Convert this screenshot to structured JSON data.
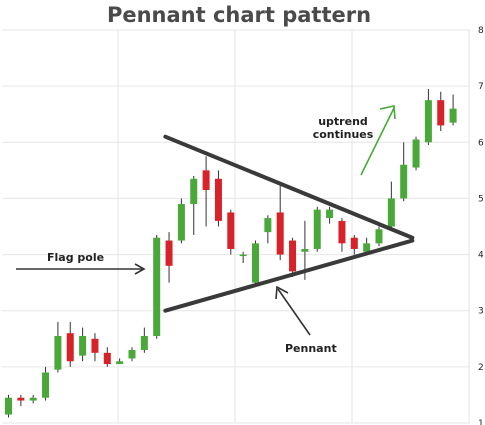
{
  "chart_data": {
    "type": "candlestick",
    "title": "Pennant chart pattern",
    "xlabel": "",
    "ylabel": "",
    "ylim": [
      1,
      8
    ],
    "yticks": [
      "1",
      "2",
      "3",
      "4",
      "5",
      "6",
      "7",
      "8"
    ],
    "grid": true,
    "up_color": "#4aa83a",
    "down_color": "#d8222a",
    "candles": [
      {
        "open": 1.15,
        "close": 1.45,
        "high": 1.5,
        "low": 1.1
      },
      {
        "open": 1.45,
        "close": 1.4,
        "high": 1.5,
        "low": 1.3
      },
      {
        "open": 1.4,
        "close": 1.45,
        "high": 1.5,
        "low": 1.35
      },
      {
        "open": 1.45,
        "close": 1.9,
        "high": 2.0,
        "low": 1.4
      },
      {
        "open": 1.95,
        "close": 2.55,
        "high": 2.8,
        "low": 1.9
      },
      {
        "open": 2.6,
        "close": 2.1,
        "high": 2.8,
        "low": 2.0
      },
      {
        "open": 2.2,
        "close": 2.55,
        "high": 2.7,
        "low": 2.1
      },
      {
        "open": 2.5,
        "close": 2.25,
        "high": 2.6,
        "low": 2.1
      },
      {
        "open": 2.25,
        "close": 2.05,
        "high": 2.35,
        "low": 2.0
      },
      {
        "open": 2.05,
        "close": 2.1,
        "high": 2.15,
        "low": 2.05
      },
      {
        "open": 2.15,
        "close": 2.3,
        "high": 2.35,
        "low": 2.1
      },
      {
        "open": 2.3,
        "close": 2.55,
        "high": 2.7,
        "low": 2.25
      },
      {
        "open": 2.55,
        "close": 4.3,
        "high": 4.35,
        "low": 2.5
      },
      {
        "open": 4.25,
        "close": 3.8,
        "high": 4.4,
        "low": 3.5
      },
      {
        "open": 4.25,
        "close": 4.9,
        "high": 5.0,
        "low": 4.2
      },
      {
        "open": 4.9,
        "close": 5.35,
        "high": 5.4,
        "low": 4.35
      },
      {
        "open": 5.5,
        "close": 5.15,
        "high": 5.75,
        "low": 4.5
      },
      {
        "open": 5.35,
        "close": 4.6,
        "high": 5.5,
        "low": 4.5
      },
      {
        "open": 4.75,
        "close": 4.1,
        "high": 4.8,
        "low": 4.0
      },
      {
        "open": 4.0,
        "close": 4.0,
        "high": 4.05,
        "low": 3.85
      },
      {
        "open": 3.5,
        "close": 4.2,
        "high": 4.25,
        "low": 3.45
      },
      {
        "open": 4.4,
        "close": 4.65,
        "high": 4.7,
        "low": 4.2
      },
      {
        "open": 4.75,
        "close": 4.0,
        "high": 5.25,
        "low": 3.9
      },
      {
        "open": 4.25,
        "close": 3.7,
        "high": 4.3,
        "low": 3.6
      },
      {
        "open": 4.05,
        "close": 4.1,
        "high": 4.6,
        "low": 3.55
      },
      {
        "open": 4.1,
        "close": 4.8,
        "high": 4.85,
        "low": 4.05
      },
      {
        "open": 4.65,
        "close": 4.8,
        "high": 4.85,
        "low": 4.55
      },
      {
        "open": 4.6,
        "close": 4.2,
        "high": 4.65,
        "low": 4.05
      },
      {
        "open": 4.3,
        "close": 4.1,
        "high": 4.35,
        "low": 4.0
      },
      {
        "open": 4.05,
        "close": 4.2,
        "high": 4.3,
        "low": 4.0
      },
      {
        "open": 4.2,
        "close": 4.45,
        "high": 4.5,
        "low": 4.15
      },
      {
        "open": 4.5,
        "close": 5.0,
        "high": 5.3,
        "low": 4.45
      },
      {
        "open": 5.0,
        "close": 5.6,
        "high": 6.0,
        "low": 4.95
      },
      {
        "open": 5.55,
        "close": 6.05,
        "high": 6.1,
        "low": 5.5
      },
      {
        "open": 6.0,
        "close": 6.75,
        "high": 6.95,
        "low": 5.95
      },
      {
        "open": 6.75,
        "close": 6.3,
        "high": 6.9,
        "low": 6.2
      },
      {
        "open": 6.35,
        "close": 6.6,
        "high": 6.85,
        "low": 6.3
      }
    ],
    "trendlines": [
      {
        "name": "upper",
        "from": [
          15,
          6.1
        ],
        "to": [
          39,
          4.3
        ]
      },
      {
        "name": "lower",
        "from": [
          15,
          3.0
        ],
        "to": [
          39,
          4.25
        ]
      }
    ],
    "annotations": [
      {
        "text": "Flag pole"
      },
      {
        "text": "Pennant"
      },
      {
        "text": "uptrend"
      },
      {
        "text": "continues"
      }
    ]
  }
}
